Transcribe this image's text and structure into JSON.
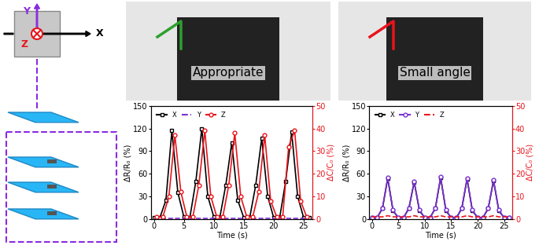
{
  "diagram": {
    "axis_labels": {
      "y": "Y",
      "z": "Z",
      "x": "X"
    }
  },
  "photos": [
    {
      "label": "Appropriate"
    },
    {
      "label": "Small angle"
    }
  ],
  "chart_data": [
    {
      "type": "line",
      "x_label": "Time (s)",
      "y_label": "ΔR/R₀ (%)",
      "y2_label": "ΔC/C₀ (%)",
      "xlim": [
        -0.5,
        26.5
      ],
      "xticks": [
        0,
        5,
        10,
        15,
        20,
        25
      ],
      "ylim": [
        0,
        150
      ],
      "yticks": [
        0,
        30,
        60,
        90,
        120,
        150
      ],
      "y2lim": [
        0,
        50
      ],
      "y2ticks": [
        0,
        10,
        20,
        30,
        40,
        50
      ],
      "legend": "upper left",
      "series": [
        {
          "name": "X",
          "color": "#000000",
          "marker": "square",
          "line_style": "solid",
          "x": [
            0,
            1,
            2,
            3,
            4,
            5,
            6,
            7,
            8,
            9,
            10,
            11,
            12,
            13,
            14,
            15,
            16,
            17,
            18,
            19,
            20,
            21,
            22,
            23,
            24,
            25,
            26
          ],
          "values": [
            2,
            2,
            25,
            117,
            35,
            3,
            2,
            50,
            120,
            30,
            3,
            2,
            45,
            101,
            25,
            2,
            2,
            45,
            107,
            30,
            2,
            2,
            50,
            115,
            30,
            2,
            2
          ]
        },
        {
          "name": "Y",
          "color": "#7b2fd6",
          "marker": "none",
          "line_style": "dashed",
          "x": [
            0,
            1,
            2,
            3,
            4,
            5,
            6,
            7,
            8,
            9,
            10,
            11,
            12,
            13,
            14,
            15,
            16,
            17,
            18,
            19,
            20,
            21,
            22,
            23,
            24,
            25,
            26
          ],
          "values": [
            1,
            1,
            1,
            1,
            1,
            1,
            1,
            1,
            1,
            1,
            1,
            1,
            1,
            1,
            1,
            1,
            1,
            1,
            1,
            1,
            1,
            1,
            1,
            1,
            1,
            1,
            1
          ]
        },
        {
          "name": "Z",
          "color": "#e8141c",
          "marker": "circle",
          "line_style": "solid",
          "axis": "y2",
          "x": [
            0.5,
            1.5,
            2.5,
            3.5,
            4.5,
            5.5,
            6.5,
            7.5,
            8.5,
            9.5,
            10.5,
            11.5,
            12.5,
            13.5,
            14.5,
            15.5,
            16.5,
            17.5,
            18.5,
            19.5,
            20.5,
            21.5,
            22.5,
            23.5,
            24.5,
            25.5
          ],
          "values": [
            1,
            1,
            10,
            37,
            12,
            1,
            1,
            15,
            39,
            10,
            1,
            1,
            15,
            38,
            10,
            1,
            1,
            12,
            37,
            8,
            1,
            1,
            32,
            39,
            8,
            1
          ]
        }
      ]
    },
    {
      "type": "line",
      "x_label": "Time (s)",
      "y_label": "ΔR/R₀ (%)",
      "y2_label": "ΔC/C₀ (%)",
      "xlim": [
        -0.5,
        26.5
      ],
      "xticks": [
        0,
        5,
        10,
        15,
        20,
        25
      ],
      "ylim": [
        0,
        150
      ],
      "yticks": [
        0,
        30,
        60,
        90,
        120,
        150
      ],
      "y2lim": [
        0,
        50
      ],
      "y2ticks": [
        0,
        10,
        20,
        30,
        40,
        50
      ],
      "legend": "upper left",
      "series": [
        {
          "name": "X",
          "color": "#000000",
          "marker": "square",
          "line_style": "solid",
          "x": [
            0,
            1,
            2,
            3,
            4,
            5,
            6,
            7,
            8,
            9,
            10,
            11,
            12,
            13,
            14,
            15,
            16,
            17,
            18,
            19,
            20,
            21,
            22,
            23,
            24,
            25,
            26
          ],
          "values": [
            2,
            2,
            14,
            54,
            11,
            2,
            2,
            14,
            49,
            11,
            2,
            2,
            14,
            55,
            11,
            2,
            2,
            14,
            53,
            11,
            2,
            2,
            14,
            51,
            11,
            2,
            2
          ]
        },
        {
          "name": "Y",
          "color": "#7b2fd6",
          "marker": "circle",
          "line_style": "solid",
          "x": [
            0,
            1,
            2,
            3,
            4,
            5,
            6,
            7,
            8,
            9,
            10,
            11,
            12,
            13,
            14,
            15,
            16,
            17,
            18,
            19,
            20,
            21,
            22,
            23,
            24,
            25,
            26
          ],
          "values": [
            2,
            2,
            15,
            55,
            12,
            2,
            2,
            15,
            50,
            12,
            2,
            2,
            15,
            56,
            12,
            2,
            2,
            15,
            54,
            12,
            2,
            2,
            15,
            52,
            12,
            2,
            2
          ]
        },
        {
          "name": "Z",
          "color": "#e8141c",
          "marker": "none",
          "line_style": "dashed",
          "axis": "y2",
          "x": [
            0,
            1,
            2,
            3,
            4,
            5,
            6,
            7,
            8,
            9,
            10,
            11,
            12,
            13,
            14,
            15,
            16,
            17,
            18,
            19,
            20,
            21,
            22,
            23,
            24,
            25,
            26
          ],
          "values": [
            1,
            1,
            1,
            1.5,
            1,
            1,
            1,
            1,
            1.5,
            1,
            1,
            1,
            1,
            1.5,
            1,
            1,
            1,
            1,
            1.5,
            1,
            1,
            1,
            1,
            1.5,
            1,
            1,
            1
          ]
        }
      ]
    }
  ]
}
